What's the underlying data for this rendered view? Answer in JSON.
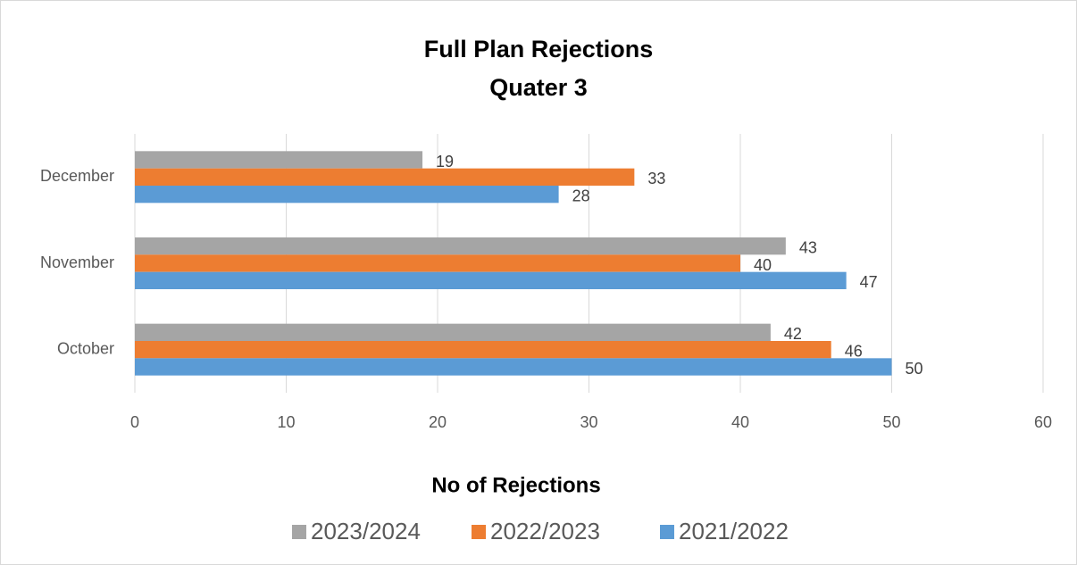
{
  "chart_data": {
    "type": "bar",
    "orientation": "horizontal",
    "title": "Full Plan Rejections",
    "subtitle": "Quater 3",
    "x_label": "No of Rejections",
    "categories": [
      "October",
      "November",
      "December"
    ],
    "series": [
      {
        "name": "2023/2024",
        "color": "#a5a5a5",
        "values": [
          42,
          43,
          19
        ]
      },
      {
        "name": "2022/2023",
        "color": "#ed7d31",
        "values": [
          46,
          40,
          33
        ]
      },
      {
        "name": "2021/2022",
        "color": "#5b9bd5",
        "values": [
          50,
          47,
          28
        ]
      }
    ],
    "xlim": [
      0,
      60
    ],
    "xticks": [
      0,
      10,
      20,
      30,
      40,
      50,
      60
    ],
    "grid": true,
    "legend": "bottom"
  }
}
